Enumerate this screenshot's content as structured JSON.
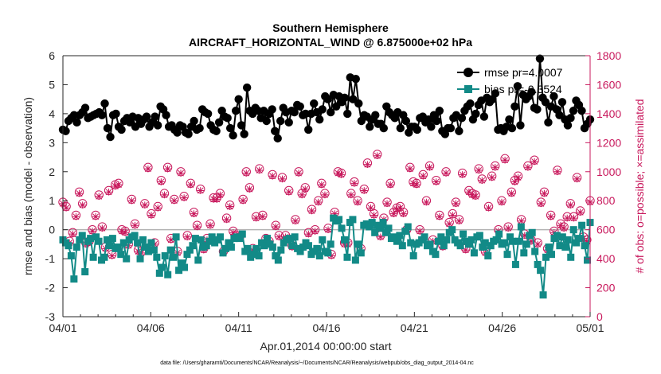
{
  "chart_data": {
    "type": "line",
    "title": "Southern Hemisphere",
    "subtitle": "AIRCRAFT_HORIZONTAL_WIND @ 6.875000e+02 hPa",
    "xlabel": "Apr.01,2014 00:00:00 start",
    "ylabel_left": "rmse and bias (model - observation)",
    "ylabel_right": "# of obs: o=possible; ×=assimilated",
    "ylim_left": [
      -3,
      6
    ],
    "ylim_right": [
      0,
      1800
    ],
    "xlim": [
      0,
      30
    ],
    "yticks_left": [
      "-3",
      "-2",
      "-1",
      "0",
      "1",
      "2",
      "3",
      "4",
      "5",
      "6"
    ],
    "yticks_right": [
      "0",
      "200",
      "400",
      "600",
      "800",
      "1000",
      "1200",
      "1400",
      "1600",
      "1800"
    ],
    "x_tick_labels": [
      "04/01",
      "04/06",
      "04/11",
      "04/16",
      "04/21",
      "04/26",
      "05/01"
    ],
    "grid": false,
    "legend_position": "top-right",
    "footnote": "data file: /Users/gharamti/Documents/NCAR/Reanalysis/~/Documents/NCAR/Reanalysis/webpub/obs_diag_output_2014-04.nc",
    "colors": {
      "rmse": "#000000",
      "bias": "#128a87",
      "obs": "#c8185c",
      "zero_line": "#b3b3b3"
    },
    "series": [
      {
        "name": "rmse",
        "legend": "rmse pr=4.0007",
        "axis": "left",
        "values": [
          3.45,
          3.4,
          3.75,
          3.85,
          3.95,
          3.7,
          3.95,
          4.05,
          4.2,
          3.85,
          3.9,
          3.95,
          4.0,
          4.05,
          3.95,
          4.35,
          3.5,
          3.2,
          3.95,
          4.0,
          3.55,
          3.45,
          3.75,
          3.85,
          3.7,
          3.9,
          3.55,
          3.85,
          3.65,
          3.8,
          3.9,
          3.55,
          3.7,
          3.9,
          3.6,
          4.25,
          4.15,
          3.95,
          3.55,
          3.6,
          3.45,
          3.35,
          3.6,
          3.55,
          3.35,
          3.3,
          3.55,
          3.75,
          3.45,
          3.5,
          4.15,
          4.05,
          4.0,
          3.6,
          3.45,
          3.4,
          3.7,
          4.1,
          3.9,
          3.85,
          3.5,
          3.25,
          4.1,
          4.5,
          3.6,
          3.3,
          4.9,
          4.1,
          4.0,
          4.2,
          4.1,
          3.85,
          4.1,
          3.75,
          4.0,
          4.15,
          3.4,
          3.15,
          3.75,
          4.2,
          4.05,
          3.7,
          4.1,
          4.05,
          4.3,
          4.25,
          3.95,
          4.0,
          3.45,
          4.0,
          4.35,
          4.05,
          3.8,
          4.15,
          4.6,
          4.5,
          4.05,
          4.65,
          4.25,
          4.6,
          4.4,
          4.55,
          4.0,
          5.25,
          4.5,
          5.2,
          4.35,
          3.75,
          3.95,
          3.9,
          3.55,
          3.8,
          3.95,
          3.65,
          3.65,
          3.5,
          4.25,
          4.05,
          3.95,
          3.85,
          4.05,
          3.5,
          3.95,
          3.75,
          3.35,
          3.55,
          3.55,
          3.45,
          3.85,
          3.9,
          3.7,
          3.8,
          3.55,
          3.95,
          3.75,
          4.1,
          3.4,
          3.3,
          3.5,
          3.5,
          3.85,
          3.95,
          3.4,
          3.85,
          4.1,
          4.25,
          4.35,
          3.8,
          4.0,
          4.3,
          4.45,
          3.9,
          4.55,
          4.4,
          4.5,
          4.7,
          3.45,
          3.5,
          3.4,
          3.55,
          3.8,
          3.5,
          4.25,
          4.95,
          3.6,
          4.65,
          4.5,
          4.6,
          4.75,
          4.2,
          4.15,
          5.9,
          4.55,
          4.4,
          3.7,
          4.25,
          4.6,
          4.15,
          3.95,
          4.4,
          3.8,
          3.6,
          3.85,
          4.1,
          4.45,
          4.3,
          4.1,
          3.5,
          3.65,
          3.8
        ],
        "marker": "circle"
      },
      {
        "name": "bias",
        "legend": "bias pr=-0.3524",
        "axis": "left",
        "values": [
          -0.35,
          -0.45,
          -0.55,
          -0.9,
          -1.7,
          -0.6,
          -0.35,
          -0.2,
          -1.45,
          -0.4,
          -0.3,
          -0.95,
          -0.25,
          -0.4,
          -1.05,
          -0.95,
          -0.35,
          -0.55,
          -0.3,
          -0.65,
          -0.6,
          -0.85,
          -0.45,
          -1.0,
          -0.35,
          -0.25,
          -0.2,
          -0.45,
          -1.0,
          -0.35,
          -0.6,
          -0.75,
          -0.45,
          -0.7,
          -0.95,
          -1.5,
          -1.3,
          -0.9,
          -1.55,
          -0.7,
          -0.95,
          -0.25,
          -1.4,
          -1.15,
          -1.3,
          -0.85,
          -0.7,
          -0.55,
          -0.3,
          -1.05,
          -0.35,
          -0.6,
          -0.55,
          -0.4,
          -0.25,
          -0.45,
          -0.35,
          -0.25,
          -0.8,
          -0.65,
          -0.45,
          -0.6,
          -0.3,
          -0.25,
          -0.3,
          -0.15,
          -0.75,
          -0.65,
          -0.95,
          -0.85,
          -0.65,
          -0.9,
          -0.45,
          -0.55,
          -0.3,
          -0.5,
          -0.6,
          -0.9,
          -1.05,
          -0.7,
          -0.45,
          -0.35,
          -0.3,
          -0.55,
          -0.25,
          -0.65,
          -0.75,
          -0.6,
          -0.45,
          -0.55,
          -0.85,
          -0.75,
          -0.65,
          -0.9,
          -0.35,
          -0.75,
          -0.8,
          -0.5,
          0.4,
          0.3,
          0.35,
          0.05,
          -0.35,
          -0.95,
          0.25,
          0.35,
          -1.05,
          -0.5,
          -0.8,
          0.15,
          0.2,
          0.1,
          0.25,
          -0.1,
          0.15,
          0.05,
          0.25,
          -0.1,
          0.05,
          -0.3,
          -0.25,
          -0.4,
          -0.2,
          -0.55,
          -0.05,
          0.1,
          -0.45,
          -0.9,
          -0.5,
          -0.45,
          -0.35,
          -0.25,
          -0.55,
          -0.5,
          -0.75,
          -0.85,
          -0.4,
          -0.25,
          -0.55,
          -0.35,
          -0.1,
          0.0,
          -0.35,
          -0.45,
          -0.55,
          -0.15,
          -0.4,
          -0.5,
          -0.35,
          -0.8,
          -0.25,
          -0.2,
          -0.6,
          -0.45,
          -0.9,
          -0.55,
          -0.4,
          -0.35,
          -0.15,
          -0.5,
          -0.45,
          -0.85,
          -0.25,
          -0.4,
          -1.2,
          -0.4,
          0.1,
          -0.8,
          -0.5,
          -0.2,
          -0.1,
          -0.75,
          -1.2,
          -1.4,
          -2.25,
          -0.95,
          -0.6,
          -0.85,
          -0.3,
          -0.2,
          -0.55,
          -0.25,
          -0.6,
          -0.35,
          -0.95,
          0.0,
          -0.45,
          -0.3,
          0.15,
          -0.55,
          -1.05,
          0.25
        ],
        "marker": "square"
      },
      {
        "name": "possible",
        "legend": "o=possible",
        "axis": "right",
        "values": [
          790,
          760,
          520,
          580,
          700,
          860,
          780,
          510,
          520,
          600,
          700,
          840,
          620,
          480,
          870,
          430,
          910,
          920,
          600,
          590,
          500,
          810,
          640,
          460,
          450,
          780,
          1030,
          710,
          510,
          760,
          940,
          850,
          1030,
          540,
          810,
          450,
          1000,
          830,
          560,
          920,
          720,
          630,
          880,
          470,
          540,
          640,
          820,
          820,
          850,
          450,
          680,
          770,
          590,
          560,
          550,
          810,
          1000,
          890,
          470,
          690,
          1020,
          700,
          540,
          520,
          980,
          630,
          560,
          960,
          560,
          870,
          490,
          670,
          1000,
          850,
          890,
          580,
          740,
          600,
          800,
          920,
          850,
          610,
          430,
          720,
          1000,
          990,
          510,
          510,
          850,
          930,
          800,
          470,
          880,
          1060,
          760,
          710,
          1120,
          560,
          680,
          790,
          920,
          720,
          750,
          760,
          720,
          600,
          1030,
          930,
          920,
          600,
          980,
          800,
          1040,
          530,
          940,
          700,
          490,
          1000,
          650,
          710,
          790,
          670,
          990,
          470,
          870,
          850,
          840,
          1020,
          950,
          450,
          760,
          970,
          1040,
          600,
          800,
          1090,
          620,
          860,
          940,
          970,
          670,
          570,
          1040,
          530,
          1080,
          510,
          790,
          860,
          470,
          700,
          590,
          1010,
          640,
          620,
          690,
          780,
          690,
          960,
          730,
          550,
          530,
          800
        ],
        "marker": "open-circle"
      },
      {
        "name": "assimilated",
        "legend": "×=assimilated",
        "axis": "right",
        "values": [
          780,
          750,
          510,
          570,
          690,
          850,
          770,
          500,
          510,
          590,
          690,
          830,
          610,
          470,
          860,
          420,
          900,
          910,
          590,
          580,
          490,
          800,
          630,
          450,
          440,
          770,
          1020,
          700,
          500,
          750,
          930,
          840,
          1020,
          530,
          800,
          440,
          990,
          820,
          550,
          910,
          710,
          620,
          870,
          460,
          530,
          630,
          810,
          810,
          840,
          440,
          670,
          760,
          580,
          550,
          540,
          800,
          990,
          880,
          460,
          680,
          1010,
          690,
          530,
          510,
          970,
          620,
          550,
          950,
          550,
          860,
          480,
          660,
          990,
          840,
          880,
          570,
          730,
          590,
          790,
          910,
          840,
          600,
          420,
          710,
          990,
          980,
          500,
          500,
          840,
          920,
          790,
          460,
          870,
          1050,
          750,
          700,
          1110,
          550,
          670,
          780,
          910,
          710,
          740,
          750,
          710,
          590,
          1020,
          920,
          910,
          590,
          970,
          790,
          1030,
          520,
          930,
          690,
          480,
          990,
          640,
          700,
          780,
          660,
          980,
          460,
          860,
          840,
          830,
          1010,
          940,
          440,
          750,
          960,
          1030,
          590,
          790,
          1080,
          610,
          850,
          930,
          960,
          660,
          560,
          1030,
          520,
          1070,
          500,
          780,
          850,
          460,
          690,
          580,
          1000,
          630,
          610,
          680,
          770,
          680,
          950,
          720,
          540,
          520,
          790
        ],
        "marker": "x"
      }
    ]
  }
}
